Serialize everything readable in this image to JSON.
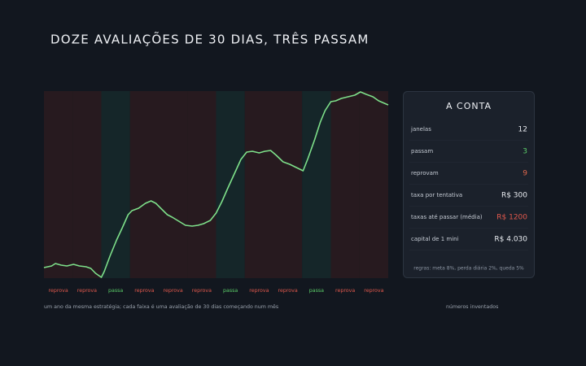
{
  "chart_data": {
    "type": "line",
    "title": "DOZE AVALIAÇÕES DE 30 DIAS, TRÊS PASSAM",
    "caption": "um ano da mesma estratégia; cada faixa é uma avaliação de 30 dias começando num mês",
    "note": "números inventados",
    "bands": [
      {
        "label": "reprova",
        "color": "#e0584c",
        "fill": "#271a1f"
      },
      {
        "label": "reprova",
        "color": "#e0584c",
        "fill": "#271a1f"
      },
      {
        "label": "passa",
        "color": "#5ccf6a",
        "fill": "#152629"
      },
      {
        "label": "reprova",
        "color": "#e0584c",
        "fill": "#271a1f"
      },
      {
        "label": "reprova",
        "color": "#e0584c",
        "fill": "#271a1f"
      },
      {
        "label": "reprova",
        "color": "#e0584c",
        "fill": "#271a1f"
      },
      {
        "label": "passa",
        "color": "#5ccf6a",
        "fill": "#152629"
      },
      {
        "label": "reprova",
        "color": "#e0584c",
        "fill": "#271a1f"
      },
      {
        "label": "reprova",
        "color": "#e0584c",
        "fill": "#271a1f"
      },
      {
        "label": "passa",
        "color": "#5ccf6a",
        "fill": "#152629"
      },
      {
        "label": "reprova",
        "color": "#e0584c",
        "fill": "#271a1f"
      },
      {
        "label": "reprova",
        "color": "#e0584c",
        "fill": "#271a1f"
      }
    ],
    "series": [
      {
        "color": "#7ee08a",
        "x": [
          0,
          8,
          12,
          18,
          24,
          31,
          37,
          44,
          49,
          54,
          60,
          63,
          69,
          76,
          82,
          88,
          92,
          99,
          106,
          112,
          117,
          123,
          129,
          134,
          141,
          148,
          155,
          161,
          167,
          174,
          180,
          186,
          192,
          199,
          206,
          212,
          218,
          225,
          231,
          237,
          243,
          250,
          257,
          264,
          271,
          276,
          283,
          289,
          294,
          300,
          305,
          311,
          318,
          325,
          331,
          337,
          344,
          350,
          356,
          360
        ],
        "values": [
          12,
          14,
          17,
          15,
          14,
          16,
          14,
          13,
          11,
          5,
          0,
          7,
          26,
          46,
          61,
          77,
          82,
          85,
          91,
          94,
          91,
          84,
          77,
          74,
          69,
          64,
          63,
          64,
          66,
          70,
          79,
          93,
          109,
          127,
          145,
          154,
          155,
          153,
          155,
          156,
          150,
          142,
          139,
          135,
          131,
          146,
          169,
          191,
          205,
          216,
          217,
          220,
          222,
          224,
          228,
          225,
          222,
          217,
          214,
          212
        ]
      }
    ],
    "panel": {
      "title": "A CONTA",
      "rows": [
        {
          "label": "janelas",
          "value": "12",
          "color": "#e8ebf0"
        },
        {
          "label": "passam",
          "value": "3",
          "color": "#5ccf6a"
        },
        {
          "label": "reprovam",
          "value": "9",
          "color": "#e0684c"
        },
        {
          "label": "taxa por tentativa",
          "value": "R$ 300",
          "color": "#e8ebf0"
        },
        {
          "label": "taxas até passar (média)",
          "value": "R$ 1200",
          "color": "#e0584c"
        },
        {
          "label": "capital de 1 mini",
          "value": "R$ 4.030",
          "color": "#e8ebf0"
        }
      ],
      "footnote": "regras: meta 8%, perda diária 2%, queda 5%"
    }
  }
}
